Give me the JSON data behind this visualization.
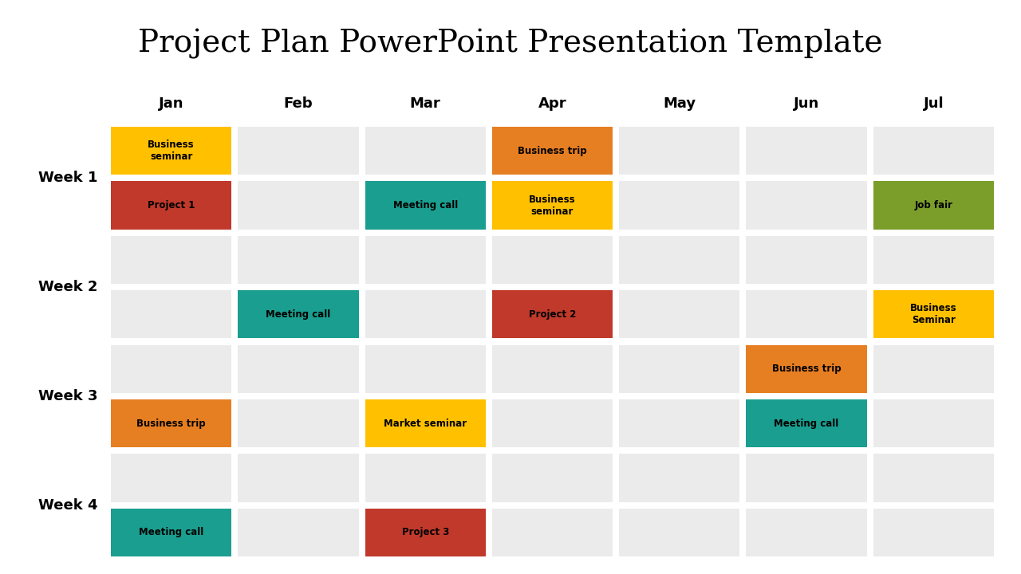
{
  "title": "Project Plan PowerPoint Presentation Template",
  "title_fontsize": 28,
  "months": [
    "Jan",
    "Feb",
    "Mar",
    "Apr",
    "May",
    "Jun",
    "Jul"
  ],
  "weeks": [
    "Week 1",
    "Week 2",
    "Week 3",
    "Week 4"
  ],
  "background_color": "#ffffff",
  "cell_bg_color": "#ebebeb",
  "tasks": [
    {
      "week": 0,
      "month": 0,
      "label": "Business\nseminar",
      "color": "#FFC000",
      "sub_row": 0
    },
    {
      "week": 0,
      "month": 0,
      "label": "Project 1",
      "color": "#C0392B",
      "sub_row": 1
    },
    {
      "week": 0,
      "month": 2,
      "label": "Meeting call",
      "color": "#1A9E8F",
      "sub_row": 1
    },
    {
      "week": 0,
      "month": 3,
      "label": "Business trip",
      "color": "#E67E22",
      "sub_row": 0
    },
    {
      "week": 0,
      "month": 3,
      "label": "Business\nseminar",
      "color": "#FFC000",
      "sub_row": 1
    },
    {
      "week": 0,
      "month": 6,
      "label": "Job fair",
      "color": "#7B9E2A",
      "sub_row": 1
    },
    {
      "week": 1,
      "month": 1,
      "label": "Meeting call",
      "color": "#1A9E8F",
      "sub_row": 1
    },
    {
      "week": 1,
      "month": 3,
      "label": "Project 2",
      "color": "#C0392B",
      "sub_row": 1
    },
    {
      "week": 1,
      "month": 6,
      "label": "Business\nSeminar",
      "color": "#FFC000",
      "sub_row": 1
    },
    {
      "week": 2,
      "month": 0,
      "label": "Business trip",
      "color": "#E67E22",
      "sub_row": 1
    },
    {
      "week": 2,
      "month": 2,
      "label": "Market seminar",
      "color": "#FFC000",
      "sub_row": 1
    },
    {
      "week": 2,
      "month": 5,
      "label": "Business trip",
      "color": "#E67E22",
      "sub_row": 0
    },
    {
      "week": 2,
      "month": 5,
      "label": "Meeting call",
      "color": "#1A9E8F",
      "sub_row": 1
    },
    {
      "week": 3,
      "month": 0,
      "label": "Meeting call",
      "color": "#1A9E8F",
      "sub_row": 1
    },
    {
      "week": 3,
      "month": 2,
      "label": "Project 3",
      "color": "#C0392B",
      "sub_row": 1
    }
  ]
}
